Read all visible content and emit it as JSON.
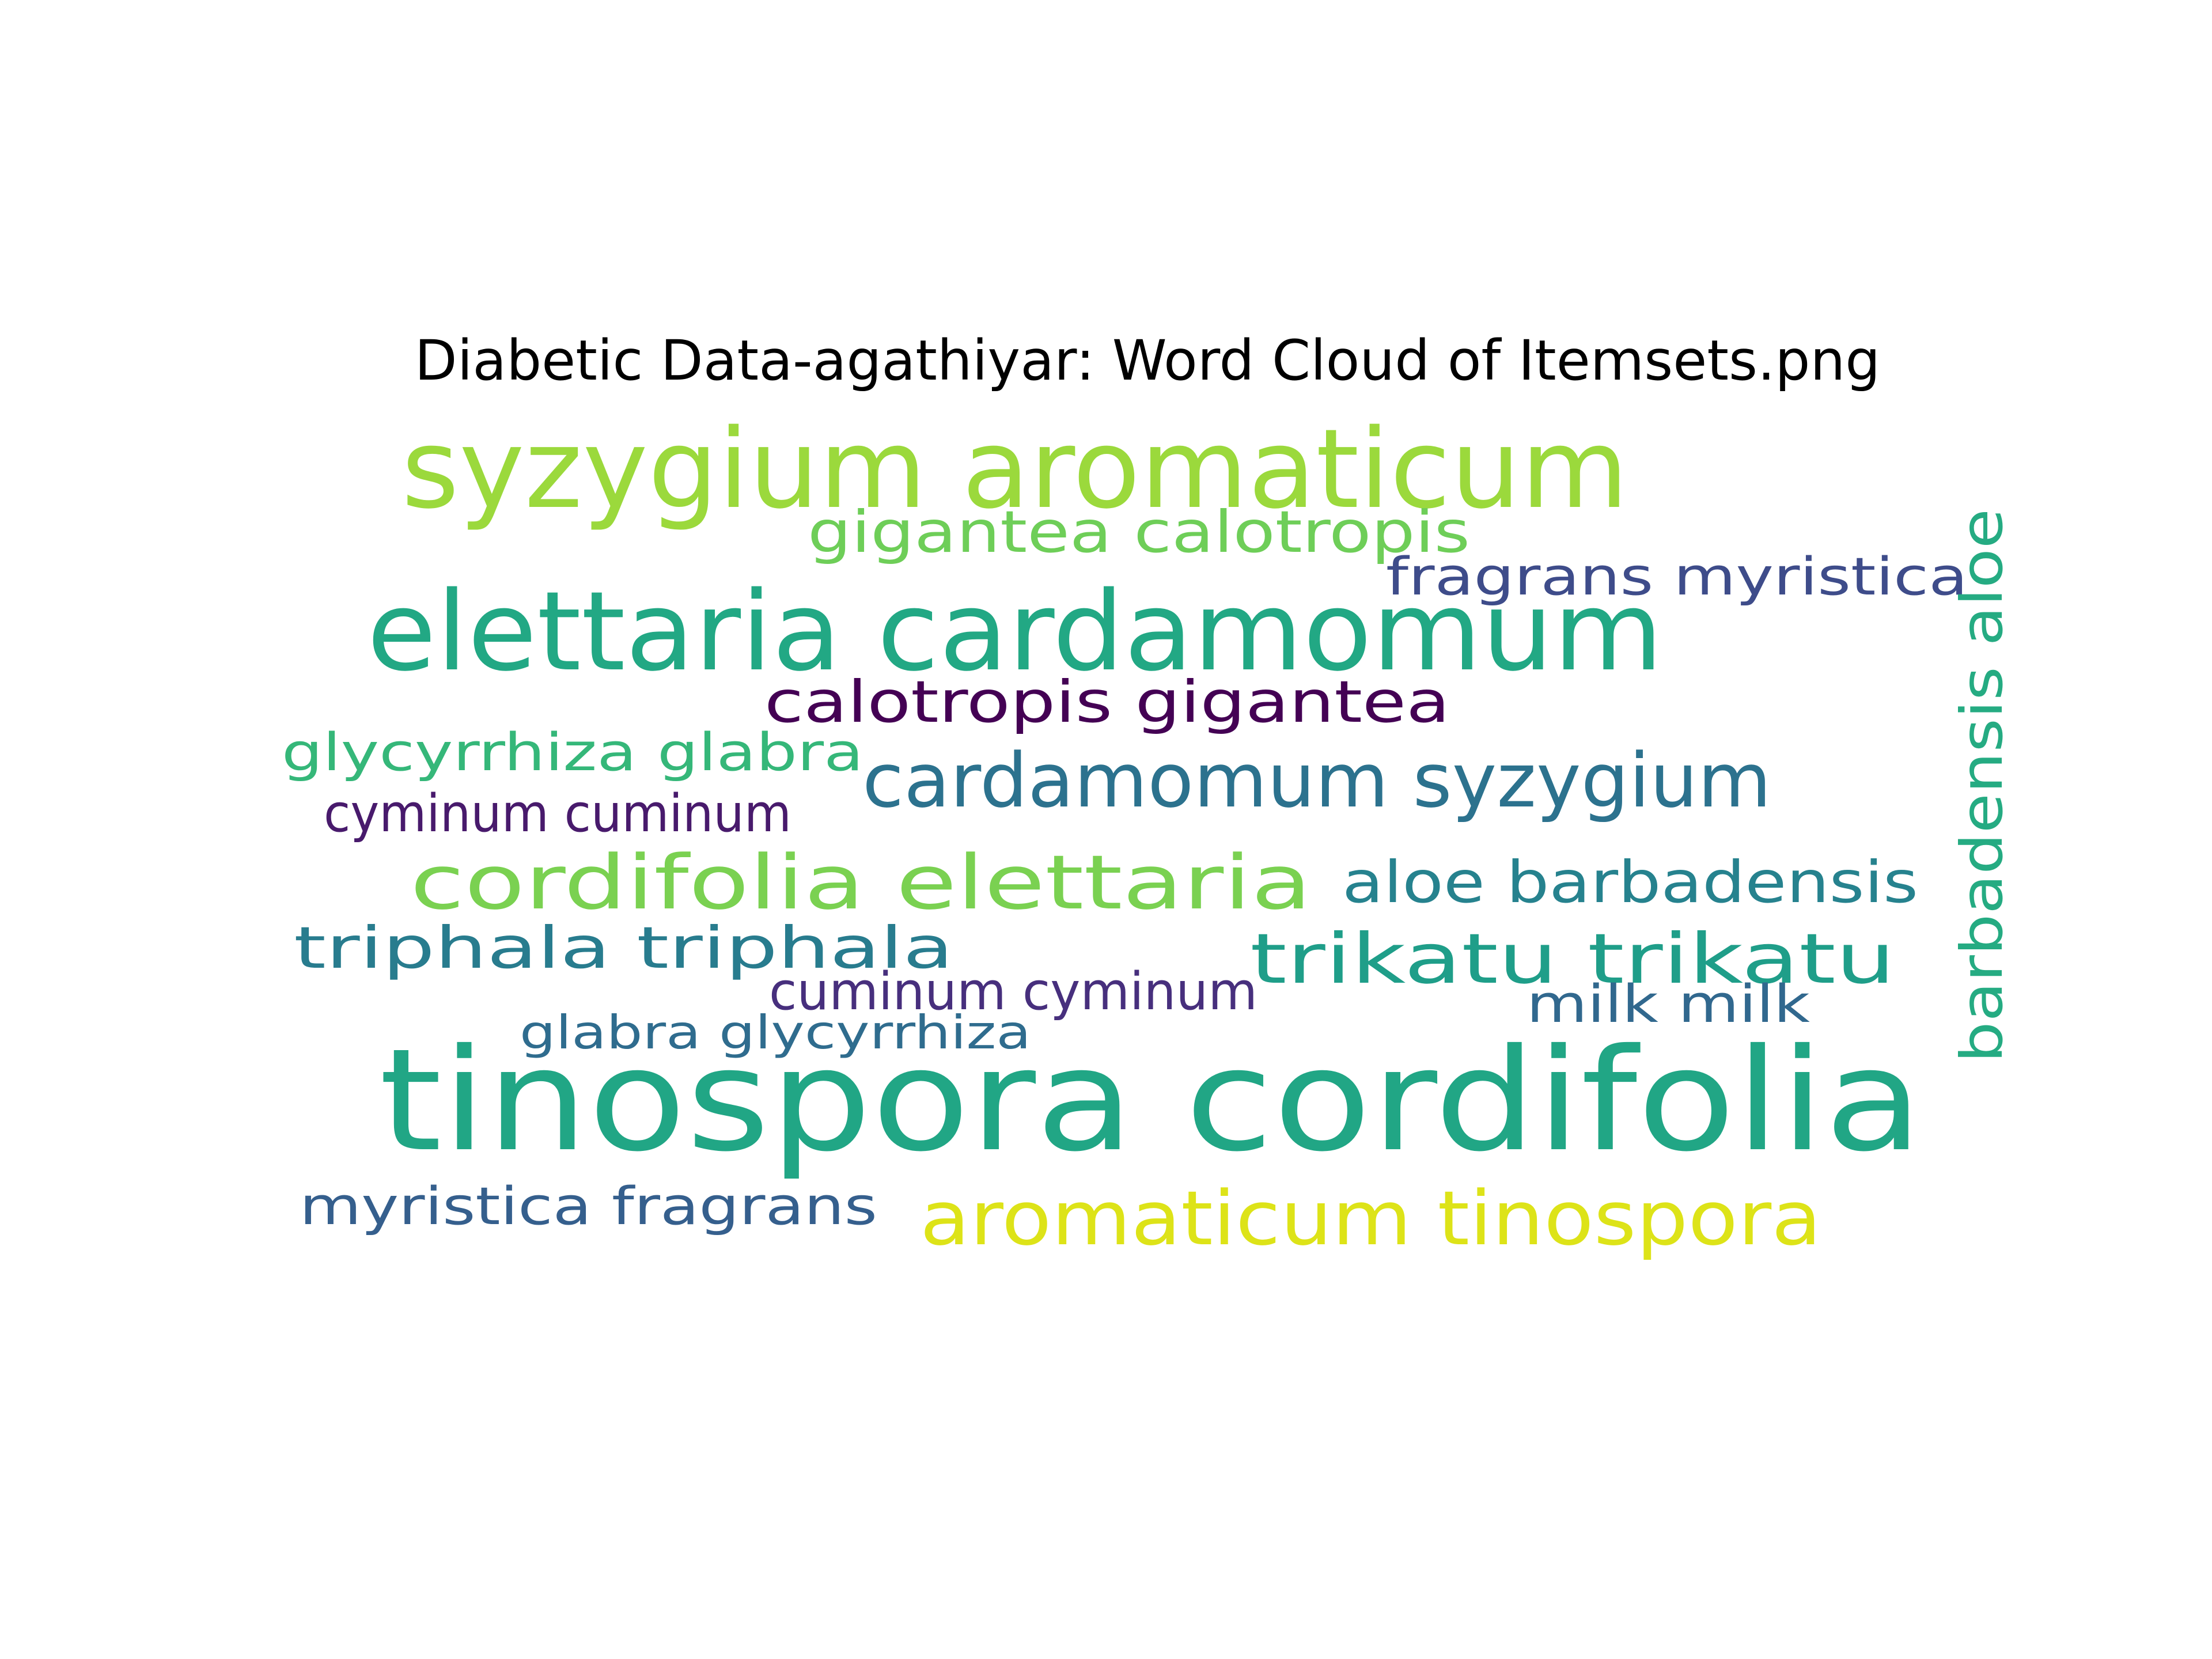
{
  "chart_data": {
    "type": "wordcloud",
    "title": "Diabetic Data-agathiyar: Word Cloud of Itemsets.png",
    "words": [
      {
        "text": "syzygium aromaticum",
        "color": "#9bd93c"
      },
      {
        "text": "gigantea calotropis",
        "color": "#6ece58"
      },
      {
        "text": "fragrans myristica",
        "color": "#3e4c8a"
      },
      {
        "text": "elettaria cardamomum",
        "color": "#22a884"
      },
      {
        "text": "calotropis gigantea",
        "color": "#440154"
      },
      {
        "text": "glycyrrhiza glabra",
        "color": "#35b779"
      },
      {
        "text": "cardamomum syzygium",
        "color": "#2c728e"
      },
      {
        "text": "cyminum cuminum",
        "color": "#481a6c"
      },
      {
        "text": "cordifolia elettaria",
        "color": "#7ad151"
      },
      {
        "text": "aloe barbadensis",
        "color": "#26828e"
      },
      {
        "text": "triphala triphala",
        "color": "#287c8e"
      },
      {
        "text": "trikatu trikatu",
        "color": "#1f9e89"
      },
      {
        "text": "cuminum cyminum",
        "color": "#472f7d"
      },
      {
        "text": "milk milk",
        "color": "#31688e"
      },
      {
        "text": "glabra glycyrrhiza",
        "color": "#2f6c8e"
      },
      {
        "text": "tinospora cordifolia",
        "color": "#21a685"
      },
      {
        "text": "myristica fragrans",
        "color": "#355f8d"
      },
      {
        "text": "aromaticum tinospora",
        "color": "#dde318"
      },
      {
        "text": "barbadensis aloe",
        "color": "#25ab82"
      },
      {
        "text": "",
        "color": "#1f9e89"
      }
    ]
  }
}
